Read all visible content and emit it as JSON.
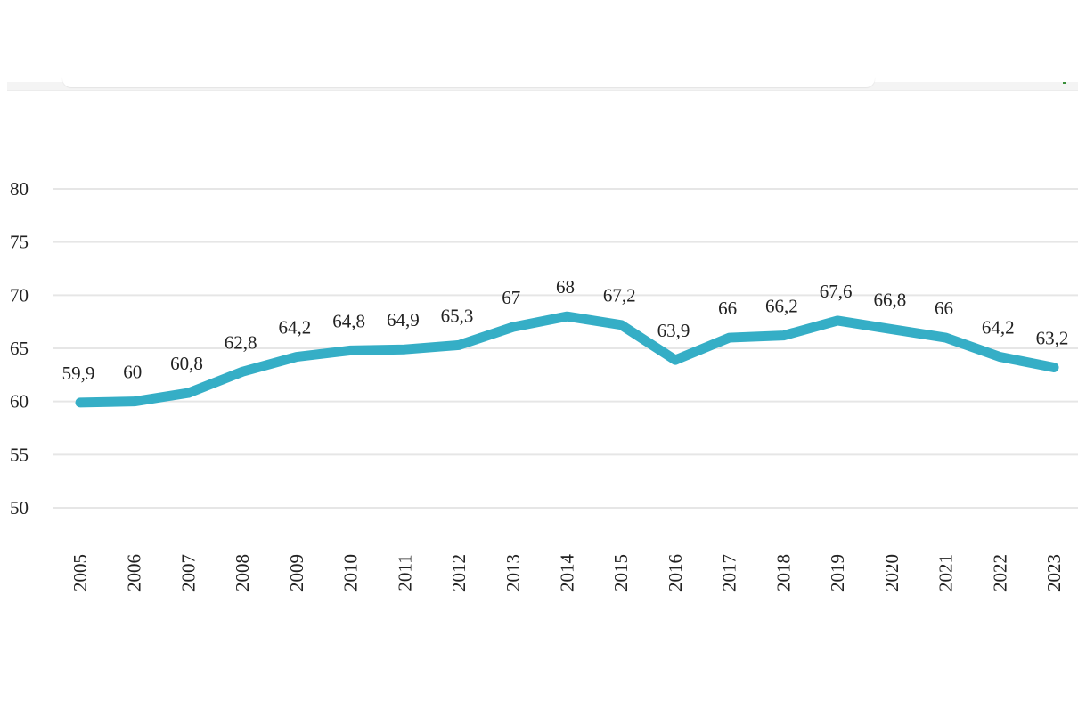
{
  "chart_data": {
    "type": "line",
    "title": "",
    "xlabel": "",
    "ylabel": "",
    "x": [
      "2005",
      "2006",
      "2007",
      "2008",
      "2009",
      "2010",
      "2011",
      "2012",
      "2013",
      "2014",
      "2015",
      "2016",
      "2017",
      "2018",
      "2019",
      "2020",
      "2021",
      "2022",
      "2023"
    ],
    "series": [
      {
        "name": "",
        "color": "#35aec6",
        "values": [
          59.9,
          60,
          60.8,
          62.8,
          64.2,
          64.8,
          64.9,
          65.3,
          67,
          68,
          67.2,
          63.9,
          66,
          66.2,
          67.6,
          66.8,
          66,
          64.2,
          63.2
        ],
        "labels": [
          "59,9",
          "60",
          "60,8",
          "62,8",
          "64,2",
          "64,8",
          "64,9",
          "65,3",
          "67",
          "68",
          "67,2",
          "63,9",
          "66",
          "66,2",
          "67,6",
          "66,8",
          "66",
          "64,2",
          "63,2"
        ]
      }
    ],
    "ylim": [
      50,
      80
    ],
    "yticks": [
      50,
      55,
      60,
      65,
      70,
      75,
      80
    ],
    "ytick_labels": [
      "50",
      "55",
      "60",
      "65",
      "70",
      "75",
      "80"
    ],
    "grid": true,
    "legend": "none",
    "gridline_color": "#e6e6e6"
  }
}
